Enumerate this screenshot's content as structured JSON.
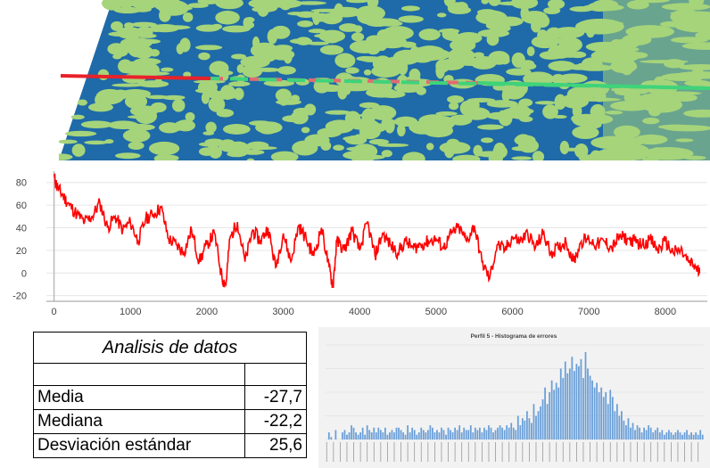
{
  "map": {
    "colors": {
      "water": "#1f6aa8",
      "land": "#a6d47a",
      "track_red": "#e8222a",
      "track_green": "#3fd37a",
      "track_pink": "#e06b72"
    }
  },
  "chart_data": [
    {
      "type": "line",
      "title": "",
      "xlabel": "",
      "ylabel": "",
      "xlim": [
        -100,
        8550
      ],
      "ylim": [
        -25,
        90
      ],
      "x_ticks": [
        0,
        1000,
        2000,
        3000,
        4000,
        5000,
        6000,
        7000,
        8000
      ],
      "y_ticks": [
        80,
        60,
        40,
        20,
        0,
        -20
      ],
      "color": "#ff0000",
      "series": [
        {
          "x": [
            0,
            50,
            120,
            200,
            300,
            400,
            500,
            600,
            700,
            800,
            900,
            1000,
            1100,
            1200,
            1300,
            1400,
            1500,
            1600,
            1700,
            1800,
            1900,
            2000,
            2100,
            2200,
            2250,
            2300,
            2400,
            2500,
            2600,
            2700,
            2800,
            2900,
            3000,
            3100,
            3200,
            3300,
            3400,
            3500,
            3600,
            3650,
            3700,
            3800,
            3900,
            4000,
            4100,
            4200,
            4300,
            4400,
            4500,
            4600,
            4700,
            4800,
            4900,
            5000,
            5100,
            5200,
            5300,
            5400,
            5500,
            5600,
            5700,
            5800,
            5900,
            6000,
            6100,
            6200,
            6300,
            6400,
            6500,
            6600,
            6700,
            6800,
            6900,
            7000,
            7100,
            7200,
            7300,
            7400,
            7500,
            7600,
            7700,
            7800,
            7900,
            8000,
            8100,
            8200,
            8300,
            8400,
            8450
          ],
          "y": [
            85,
            75,
            68,
            60,
            52,
            45,
            50,
            62,
            40,
            50,
            38,
            45,
            28,
            48,
            52,
            58,
            30,
            25,
            18,
            38,
            10,
            25,
            35,
            -5,
            -10,
            30,
            45,
            10,
            38,
            28,
            40,
            5,
            35,
            10,
            42,
            30,
            15,
            40,
            5,
            -12,
            28,
            20,
            38,
            20,
            45,
            15,
            35,
            25,
            18,
            28,
            22,
            25,
            28,
            30,
            22,
            35,
            40,
            28,
            42,
            10,
            -5,
            25,
            20,
            32,
            28,
            35,
            22,
            35,
            18,
            22,
            28,
            10,
            28,
            30,
            25,
            28,
            22,
            32,
            30,
            28,
            25,
            30,
            20,
            28,
            18,
            20,
            10,
            5,
            0
          ]
        }
      ]
    },
    {
      "type": "bar",
      "title": "Perfil 5 - Histograma de errores",
      "values": [
        0,
        3,
        1,
        0,
        4,
        0,
        0,
        3,
        4,
        2,
        3,
        6,
        5,
        3,
        2,
        3,
        5,
        2,
        6,
        4,
        3,
        5,
        3,
        5,
        4,
        3,
        5,
        2,
        3,
        4,
        3,
        5,
        5,
        4,
        3,
        2,
        6,
        3,
        5,
        4,
        2,
        3,
        5,
        4,
        3,
        4,
        6,
        5,
        3,
        4,
        3,
        5,
        4,
        2,
        5,
        4,
        3,
        5,
        4,
        6,
        3,
        5,
        4,
        4,
        6,
        3,
        5,
        4,
        5,
        3,
        5,
        4,
        6,
        5,
        3,
        4,
        5,
        6,
        5,
        4,
        6,
        5,
        7,
        5,
        4,
        10,
        6,
        9,
        8,
        12,
        9,
        7,
        15,
        10,
        12,
        14,
        17,
        22,
        15,
        20,
        25,
        21,
        24,
        22,
        30,
        26,
        33,
        28,
        30,
        35,
        29,
        32,
        31,
        34,
        26,
        37,
        30,
        27,
        25,
        22,
        24,
        20,
        22,
        18,
        20,
        15,
        21,
        18,
        12,
        15,
        10,
        12,
        8,
        6,
        9,
        5,
        7,
        4,
        6,
        5,
        3,
        5,
        4,
        6,
        5,
        3,
        4,
        5,
        3,
        4,
        2,
        3,
        4,
        3,
        2,
        3,
        4,
        3,
        2,
        3,
        4,
        2,
        3,
        2,
        3,
        2,
        4,
        2
      ],
      "ylim": [
        0,
        40
      ],
      "grid": true,
      "color": "#6a9fd8"
    }
  ],
  "stats": {
    "title": "Analisis de datos",
    "rows": [
      {
        "label": "Media",
        "value": "-27,7"
      },
      {
        "label": "Mediana",
        "value": "-22,2"
      },
      {
        "label": "Desviación estándar",
        "value": "25,6"
      }
    ]
  }
}
